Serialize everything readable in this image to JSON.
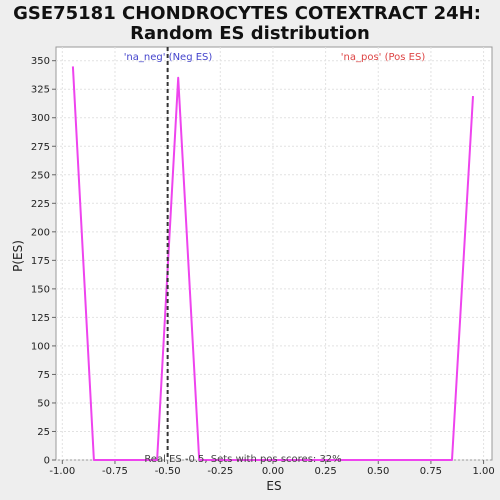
{
  "chart_data": {
    "type": "line",
    "title_lines": [
      "GSE75181 CHONDROCYTES COTEXTRACT 24H:",
      "Random ES distribution"
    ],
    "xlabel": "ES",
    "ylabel": "P(ES)",
    "xlim": [
      -1.03,
      1.04
    ],
    "ylim": [
      0,
      362
    ],
    "x_ticks": [
      -1.0,
      -0.75,
      -0.5,
      -0.25,
      0.0,
      0.25,
      0.5,
      0.75,
      1.0
    ],
    "x_tick_labels": [
      "-1.00",
      "-0.75",
      "-0.50",
      "-0.25",
      "0.00",
      "0.25",
      "0.50",
      "0.75",
      "1.00"
    ],
    "y_ticks": [
      0,
      25,
      50,
      75,
      100,
      125,
      150,
      175,
      200,
      225,
      250,
      275,
      300,
      325,
      350
    ],
    "y_tick_labels": [
      "0",
      "25",
      "50",
      "75",
      "100",
      "125",
      "150",
      "175",
      "200",
      "225",
      "250",
      "275",
      "300",
      "325",
      "350"
    ],
    "grid": true,
    "series": [
      {
        "color": "#ee44ee",
        "x": [
          -0.95,
          -0.85,
          -0.55,
          -0.45,
          -0.35,
          0.85,
          0.95
        ],
        "y": [
          345,
          0,
          0,
          335,
          0,
          0,
          319
        ]
      }
    ],
    "real_es": -0.5,
    "annotations": {
      "neg_label": "'na_neg' (Neg ES)",
      "pos_label": "'na_pos' (Pos ES)",
      "footer": "Real ES -0.5, Sets with pos scores: 32%"
    },
    "colors": {
      "neg": "#4444cc",
      "pos": "#dd4444",
      "line": "#ee44ee",
      "real_es_line": "#333333"
    }
  }
}
